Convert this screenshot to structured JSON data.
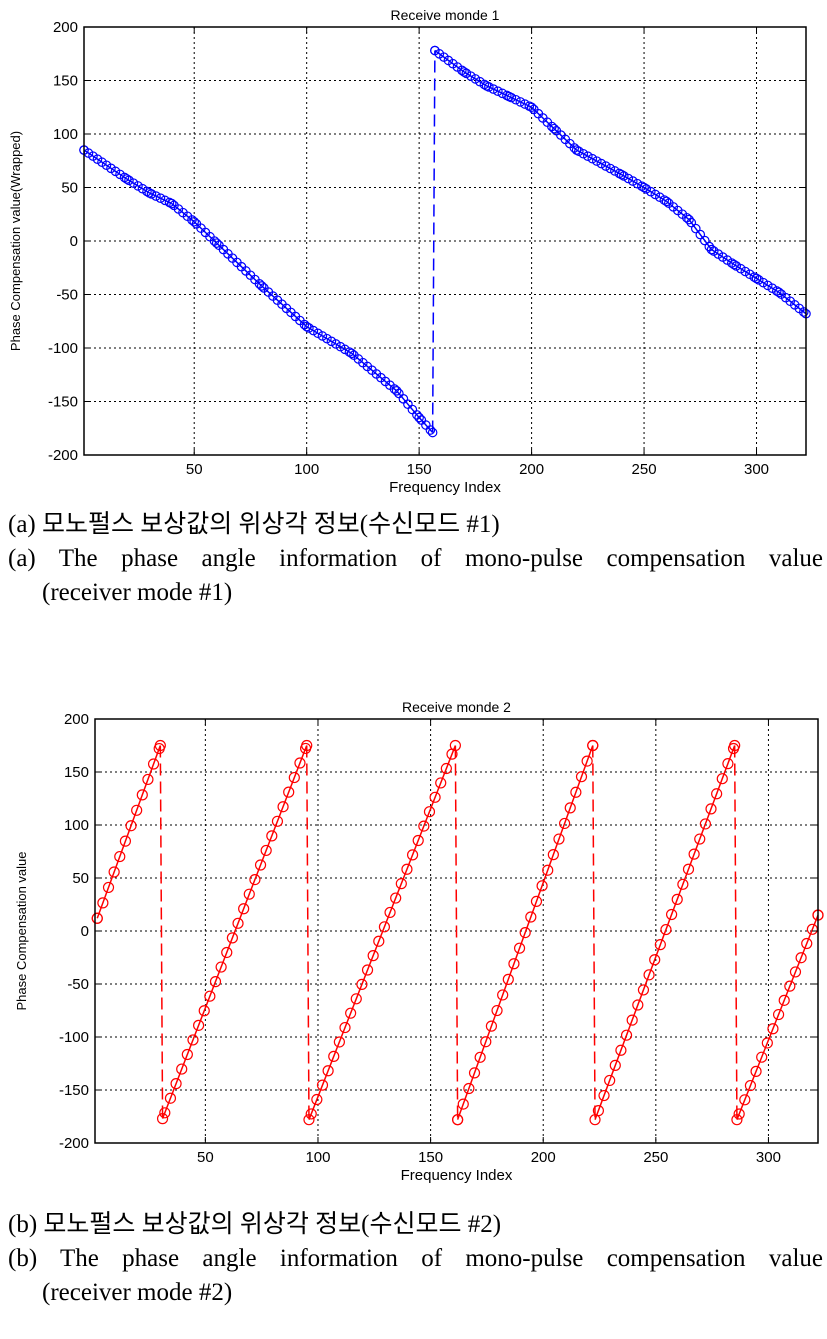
{
  "figures": [
    {
      "caption_ko": "(a) 모노펄스 보상값의 위상각 정보(수신모드 #1)",
      "caption_en_line1": "(a) The phase angle information of mono-pulse compensation value",
      "caption_en_line2": "(receiver mode #1)"
    },
    {
      "caption_ko": "(b) 모노펄스 보상값의 위상각 정보(수신모드 #2)",
      "caption_en_line1": "(b) The phase angle information of mono-pulse compensation value",
      "caption_en_line2": "(receiver mode #2)"
    }
  ],
  "chart_data": [
    {
      "type": "line",
      "title": "Receive monde 1",
      "xlabel": "Frequency Index",
      "ylabel": "Phase Compensation value(Wrapped)",
      "xlim": [
        1,
        322
      ],
      "ylim": [
        -200,
        200
      ],
      "xticks": [
        50,
        100,
        150,
        200,
        250,
        300
      ],
      "yticks": [
        -200,
        -150,
        -100,
        -50,
        0,
        50,
        100,
        150,
        200
      ],
      "grid": true,
      "color": "#0000ff",
      "marker": "circle",
      "line_style": "dashed",
      "series": [
        {
          "x": [
            1,
            20,
            30,
            40,
            50,
            60,
            80,
            100,
            120,
            140,
            150,
            156,
            157,
            170,
            180,
            190,
            200,
            210,
            220,
            240,
            250,
            260,
            270,
            280,
            290,
            300,
            310,
            322
          ],
          "y": [
            85,
            58,
            45,
            35,
            18,
            -2,
            -42,
            -80,
            -105,
            -140,
            -165,
            -179,
            178,
            158,
            145,
            135,
            125,
            105,
            85,
            62,
            50,
            37,
            20,
            -8,
            -22,
            -35,
            -48,
            -68
          ]
        }
      ]
    },
    {
      "type": "line",
      "title": "Receive monde 2",
      "xlabel": "Frequency Index",
      "ylabel": "Phase Compensation value",
      "xlim": [
        1,
        322
      ],
      "ylim": [
        -200,
        200
      ],
      "xticks": [
        50,
        100,
        150,
        200,
        250,
        300
      ],
      "yticks": [
        -200,
        -150,
        -100,
        -50,
        0,
        50,
        100,
        150,
        200
      ],
      "grid": true,
      "color": "#ff0000",
      "marker": "circle",
      "line_style": "dashed",
      "series": [
        {
          "x": [
            2,
            30,
            31,
            95,
            96,
            161,
            162,
            222,
            223,
            285,
            286,
            322
          ],
          "y": [
            12,
            175,
            -177,
            175,
            -178,
            175,
            -178,
            175,
            -178,
            175,
            -178,
            15
          ]
        }
      ]
    }
  ]
}
